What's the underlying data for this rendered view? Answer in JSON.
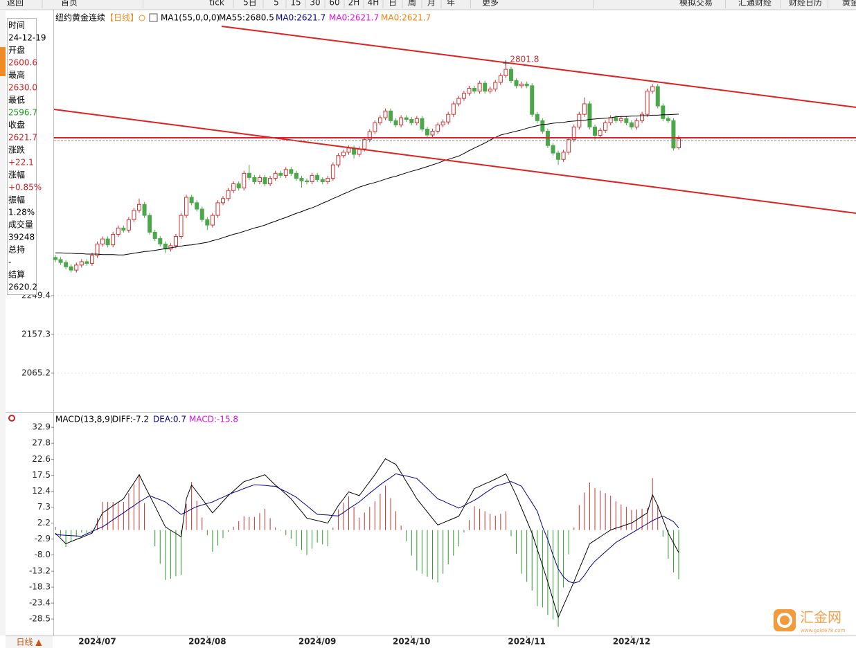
{
  "toolbar": [
    "返回",
    "首页",
    "tick",
    "5日",
    "5",
    "15",
    "30",
    "60",
    "2H",
    "4H",
    "日",
    "周",
    "月",
    "年",
    "更多",
    "模拟交易",
    "汇通财经",
    "财经日历",
    "黄金"
  ],
  "info_panel": {
    "rows": [
      {
        "label": "时间",
        "value": "24-12-19",
        "color": "#000000"
      },
      {
        "label": "开盘",
        "value": "2600.6",
        "color": "#d02020"
      },
      {
        "label": "最高",
        "value": "2630.0",
        "color": "#d02020"
      },
      {
        "label": "最低",
        "value": "2596.7",
        "color": "#1a9a1a"
      },
      {
        "label": "收盘",
        "value": "2621.7",
        "color": "#d02020"
      },
      {
        "label": "涨跌",
        "value": "+22.1",
        "color": "#d02020"
      },
      {
        "label": "涨幅",
        "value": "+0.85%",
        "color": "#d02020"
      },
      {
        "label": "振幅",
        "value": "1.28%",
        "color": "#000000"
      },
      {
        "label": "成交量",
        "value": "39248",
        "color": "#000000"
      },
      {
        "label": "总持",
        "value": "-",
        "color": "#000000"
      },
      {
        "label": "结算",
        "value": "2620.2",
        "color": "#000000"
      }
    ]
  },
  "chart_data": [
    {
      "type": "candlestick",
      "title": "纽约黄金连续",
      "period": "【日线】",
      "indicator_labels": [
        {
          "text": "MA1(55,0,0,0)",
          "color": "#000000"
        },
        {
          "text": "MA0:2621.7",
          "color": "#00008b"
        },
        {
          "text": "MA0:2621.7",
          "color": "#e010e0"
        },
        {
          "text": "MA0:2621.7",
          "color": "#f08010"
        }
      ],
      "up_color": "#d03030",
      "down_color": "#4aa84a",
      "categories": [
        null,
        null,
        null,
        null,
        null,
        null,
        null,
        null,
        "2024/07",
        null,
        null,
        null,
        null,
        null,
        null,
        null,
        null,
        null,
        null,
        null,
        null,
        null,
        null,
        null,
        null,
        null,
        null,
        null,
        null,
        "2024/08",
        null,
        null,
        null,
        null,
        null,
        null,
        null,
        null,
        null,
        null,
        null,
        null,
        null,
        null,
        null,
        null,
        null,
        null,
        null,
        null,
        "2024/09",
        null,
        null,
        null,
        null,
        null,
        null,
        null,
        null,
        null,
        null,
        null,
        null,
        null,
        null,
        null,
        null,
        null,
        "2024/10",
        null,
        null,
        null,
        null,
        null,
        null,
        null,
        null,
        null,
        null,
        null,
        null,
        null,
        null,
        null,
        null,
        null,
        null,
        null,
        null,
        null,
        "2024/11",
        null,
        null,
        null,
        null,
        null,
        null,
        null,
        null,
        null,
        null,
        null,
        null,
        null,
        null,
        null,
        null,
        null,
        null,
        null,
        "2024/12",
        null,
        null,
        null,
        null,
        null,
        null,
        null,
        null,
        null
      ],
      "open": [
        2340,
        2335,
        2328,
        2318,
        2310,
        2322,
        2330,
        2326,
        2345,
        2372,
        2384,
        2370,
        2395,
        2410,
        2405,
        2430,
        2452,
        2466,
        2440,
        2400,
        2385,
        2372,
        2360,
        2368,
        2390,
        2440,
        2483,
        2470,
        2455,
        2430,
        2417,
        2440,
        2470,
        2480,
        2499,
        2515,
        2505,
        2540,
        2530,
        2520,
        2530,
        2515,
        2528,
        2540,
        2535,
        2549,
        2540,
        2528,
        2522,
        2520,
        2535,
        2525,
        2520,
        2528,
        2560,
        2582,
        2590,
        2600,
        2585,
        2598,
        2620,
        2639,
        2660,
        2672,
        2688,
        2665,
        2655,
        2672,
        2668,
        2660,
        2670,
        2645,
        2631,
        2640,
        2655,
        2662,
        2680,
        2705,
        2718,
        2730,
        2742,
        2735,
        2754,
        2735,
        2740,
        2756,
        2772,
        2787,
        2760,
        2748,
        2752,
        2748,
        2680,
        2665,
        2640,
        2606,
        2588,
        2573,
        2590,
        2620,
        2650,
        2680,
        2705,
        2650,
        2630,
        2642,
        2660,
        2672,
        2665,
        2670,
        2660,
        2650,
        2665,
        2680,
        2735,
        2746,
        2700,
        2670,
        2665,
        2600.6
      ],
      "high": [
        2346,
        2341,
        2334,
        2324,
        2328,
        2336,
        2336,
        2351,
        2378,
        2390,
        2390,
        2401,
        2416,
        2416,
        2436,
        2458,
        2480,
        2472,
        2446,
        2406,
        2391,
        2378,
        2374,
        2396,
        2446,
        2489,
        2489,
        2476,
        2461,
        2436,
        2446,
        2476,
        2486,
        2505,
        2521,
        2521,
        2546,
        2560,
        2536,
        2536,
        2536,
        2534,
        2546,
        2546,
        2555,
        2555,
        2546,
        2534,
        2528,
        2541,
        2541,
        2531,
        2534,
        2566,
        2588,
        2596,
        2606,
        2606,
        2604,
        2626,
        2645,
        2666,
        2678,
        2694,
        2694,
        2671,
        2678,
        2678,
        2674,
        2676,
        2676,
        2651,
        2646,
        2661,
        2668,
        2686,
        2711,
        2724,
        2736,
        2748,
        2748,
        2760,
        2760,
        2746,
        2762,
        2778,
        2801.8,
        2793,
        2766,
        2758,
        2758,
        2754,
        2686,
        2671,
        2646,
        2612,
        2594,
        2596,
        2626,
        2656,
        2686,
        2720,
        2711,
        2656,
        2648,
        2666,
        2678,
        2678,
        2676,
        2676,
        2666,
        2671,
        2686,
        2741,
        2752,
        2752,
        2706,
        2676,
        2671,
        2630.0
      ],
      "low": [
        2329,
        2322,
        2312,
        2304,
        2304,
        2316,
        2320,
        2320,
        2339,
        2366,
        2364,
        2364,
        2389,
        2399,
        2399,
        2424,
        2446,
        2434,
        2394,
        2379,
        2366,
        2350,
        2354,
        2362,
        2384,
        2434,
        2464,
        2449,
        2424,
        2405,
        2411,
        2434,
        2464,
        2474,
        2493,
        2499,
        2499,
        2524,
        2514,
        2514,
        2509,
        2509,
        2522,
        2529,
        2529,
        2534,
        2522,
        2506,
        2514,
        2514,
        2519,
        2514,
        2514,
        2522,
        2554,
        2576,
        2584,
        2575,
        2579,
        2592,
        2614,
        2633,
        2654,
        2666,
        2659,
        2649,
        2649,
        2662,
        2654,
        2654,
        2639,
        2625,
        2625,
        2634,
        2649,
        2656,
        2674,
        2699,
        2712,
        2724,
        2729,
        2729,
        2729,
        2729,
        2734,
        2750,
        2766,
        2754,
        2742,
        2742,
        2742,
        2674,
        2659,
        2634,
        2600,
        2582,
        2560,
        2567,
        2584,
        2614,
        2644,
        2674,
        2644,
        2620,
        2624,
        2636,
        2654,
        2659,
        2659,
        2654,
        2644,
        2644,
        2659,
        2674,
        2729,
        2694,
        2664,
        2659,
        2594,
        2596.7
      ],
      "close": [
        2335,
        2328,
        2318,
        2310,
        2322,
        2330,
        2326,
        2345,
        2372,
        2384,
        2370,
        2395,
        2410,
        2405,
        2430,
        2452,
        2466,
        2440,
        2400,
        2385,
        2372,
        2360,
        2368,
        2390,
        2440,
        2483,
        2470,
        2455,
        2430,
        2417,
        2440,
        2470,
        2480,
        2499,
        2515,
        2505,
        2540,
        2530,
        2520,
        2530,
        2515,
        2528,
        2540,
        2535,
        2549,
        2540,
        2528,
        2522,
        2520,
        2535,
        2525,
        2520,
        2528,
        2560,
        2582,
        2590,
        2600,
        2585,
        2598,
        2620,
        2639,
        2660,
        2672,
        2688,
        2665,
        2655,
        2672,
        2668,
        2660,
        2670,
        2645,
        2631,
        2640,
        2655,
        2662,
        2680,
        2705,
        2718,
        2730,
        2742,
        2735,
        2754,
        2735,
        2740,
        2756,
        2772,
        2787,
        2760,
        2748,
        2752,
        2748,
        2680,
        2665,
        2640,
        2606,
        2588,
        2573,
        2590,
        2620,
        2650,
        2680,
        2705,
        2650,
        2630,
        2642,
        2660,
        2672,
        2665,
        2670,
        2660,
        2650,
        2665,
        2680,
        2735,
        2746,
        2700,
        2670,
        2665,
        2600,
        2621.7
      ],
      "ma": {
        "name": "MA55:2680.5",
        "color": "#000000",
        "values": [
          2351,
          2351,
          2350,
          2350,
          2349,
          2349,
          2348,
          2348,
          2348,
          2347,
          2347,
          2347,
          2346,
          2346,
          2348,
          2350,
          2352,
          2354,
          2355,
          2357,
          2359,
          2361,
          2363,
          2365,
          2367,
          2369,
          2370,
          2372,
          2374,
          2376,
          2380,
          2383,
          2387,
          2391,
          2395,
          2398,
          2402,
          2406,
          2410,
          2413,
          2417,
          2422,
          2426,
          2431,
          2435,
          2440,
          2445,
          2449,
          2454,
          2458,
          2463,
          2469,
          2474,
          2480,
          2485,
          2491,
          2496,
          2502,
          2507,
          2511,
          2515,
          2518,
          2522,
          2526,
          2530,
          2533,
          2537,
          2541,
          2545,
          2548,
          2552,
          2556,
          2560,
          2564,
          2569,
          2573,
          2577,
          2581,
          2587,
          2594,
          2600,
          2606,
          2612,
          2619,
          2625,
          2631,
          2634,
          2637,
          2640,
          2643,
          2647,
          2650,
          2653,
          2656,
          2657,
          2659,
          2660,
          2661,
          2663,
          2664,
          2665,
          2666,
          2668,
          2669,
          2670,
          2671,
          2672,
          2674,
          2675,
          2675,
          2676,
          2676,
          2677,
          2677,
          2678,
          2678,
          2679,
          2679,
          2680,
          2680.5
        ]
      },
      "ylim": [
        1978.0,
        2918.8
      ],
      "yticks": [
        2065.2,
        2157.3,
        2249.4
      ],
      "grid": true
    },
    {
      "type": "macd",
      "title": "MACD(13,8,9)",
      "series": [
        {
          "name": "DIFF:-7.2",
          "color": "#000000",
          "kind": "line",
          "values": [
            -1,
            -2.7,
            -4.4,
            -3.7,
            -3,
            -2.4,
            -1.7,
            -1,
            2.2,
            5.5,
            6.6,
            7.8,
            8.9,
            10,
            12.6,
            15.1,
            17.7,
            14.3,
            11,
            7.7,
            4.3,
            1,
            -0.1,
            -1.1,
            -2.2,
            10,
            14.4,
            12.2,
            10,
            7.7,
            5.5,
            7.3,
            9.2,
            11,
            12.5,
            14,
            15.5,
            16,
            16.6,
            17.1,
            17.7,
            16,
            14.4,
            13,
            11.5,
            10,
            7.9,
            5.9,
            3.8,
            3.4,
            3,
            2.6,
            2.2,
            5,
            7.8,
            10,
            12.2,
            11.6,
            11,
            13.2,
            15.5,
            17.7,
            20.3,
            22.8,
            21.9,
            21,
            18.3,
            15.5,
            12.8,
            10,
            7.9,
            5.8,
            3.7,
            1.6,
            2.3,
            3,
            3.7,
            4.4,
            7.4,
            10.3,
            13.3,
            14,
            14.8,
            15.5,
            16.3,
            17.1,
            18,
            14.5,
            11,
            7,
            3,
            -1,
            -6.2,
            -11.4,
            -16.6,
            -22.3,
            -28,
            -24.2,
            -20.4,
            -16.6,
            -12.5,
            -8.5,
            -4.4,
            -3.3,
            -2.2,
            -1.1,
            0,
            0.6,
            1.1,
            1.7,
            2.2,
            3.3,
            4.4,
            5.5,
            11.3,
            7.8,
            3.4,
            -1,
            -4.1,
            -7.2
          ]
        },
        {
          "name": "DEA:0.7",
          "color": "#00008b",
          "kind": "line",
          "values": [
            -1.5,
            -1.6,
            -1.7,
            -1.8,
            -1.9,
            -2,
            -1.2,
            -0.5,
            0.3,
            1,
            2.1,
            3.3,
            4.4,
            5.5,
            6.7,
            7.8,
            9,
            10,
            11,
            10.3,
            9.7,
            9,
            7.7,
            6.3,
            5,
            5.8,
            6.7,
            7.5,
            8,
            8.5,
            9,
            9.8,
            10.5,
            11.3,
            12,
            12.6,
            13.3,
            13.9,
            14.5,
            14.4,
            14.3,
            14.1,
            14,
            13.1,
            12.3,
            11.4,
            10.5,
            9.1,
            7.8,
            6.4,
            5,
            4.9,
            4.8,
            4.6,
            4.5,
            5.6,
            6.8,
            7.9,
            9,
            10.4,
            11.8,
            13.1,
            14.5,
            15.7,
            16.8,
            18,
            17.6,
            17.3,
            16.9,
            16.5,
            14.9,
            13.3,
            11.6,
            10,
            9.3,
            8.5,
            7.8,
            7,
            7.8,
            8.7,
            9.5,
            10.6,
            11.8,
            12.9,
            14,
            14.5,
            15,
            15.5,
            14.8,
            14,
            11.3,
            8.7,
            6,
            1,
            -3,
            -8,
            -12.5,
            -15,
            -16.5,
            -17,
            -16.5,
            -14.5,
            -12,
            -10,
            -8.5,
            -7,
            -5.5,
            -4,
            -3,
            -2,
            -1,
            0,
            1,
            2,
            3,
            3.8,
            4.5,
            3.6,
            2.7,
            0.7
          ]
        },
        {
          "name": "MACD:-15.8",
          "color": "#e010e0",
          "kind": "bar",
          "up_color": "#c83030",
          "down_color": "#2a9a2a",
          "values": [
            1.0,
            -2.2,
            -5.4,
            -3.8,
            -2.2,
            -0.8,
            -1.0,
            -1.0,
            3.8,
            9.0,
            9.0,
            9.0,
            9.0,
            9.0,
            11.8,
            14.6,
            17.4,
            8.6,
            0,
            -5.2,
            -10.8,
            -16,
            -15.6,
            -14.8,
            -14.4,
            8.4,
            15.4,
            9.4,
            4.0,
            -1.6,
            -7.0,
            -5.0,
            -2.6,
            -0.6,
            1.0,
            2.8,
            4.4,
            4.2,
            4.2,
            5.4,
            6.8,
            3.8,
            0.8,
            -0.2,
            -1.6,
            -2.8,
            -5.2,
            -6.4,
            -8.0,
            -6.0,
            -4.0,
            -4.6,
            -5.2,
            0.8,
            6.6,
            8.8,
            10.8,
            7.4,
            4.0,
            5.6,
            7.4,
            9.2,
            11.6,
            14.2,
            10.2,
            6.0,
            1.4,
            -3.6,
            -8.2,
            -13.0,
            -14.0,
            -15.0,
            -15.8,
            -16.8,
            -14.0,
            -11.0,
            -8.2,
            -5.2,
            -0.8,
            3.2,
            7.6,
            6.8,
            6.0,
            5.2,
            4.6,
            5.2,
            6.0,
            -2.0,
            -7.6,
            -14.0,
            -16.6,
            -19.4,
            -24.4,
            -24.8,
            -27.2,
            -28.6,
            -31.0,
            -18.4,
            -7.8,
            0.8,
            8.0,
            12.0,
            15.2,
            13.4,
            12.6,
            11.8,
            11.0,
            9.2,
            8.2,
            7.4,
            6.4,
            6.6,
            6.8,
            7.0,
            16.6,
            8.0,
            -2.2,
            -9.2,
            -13.6,
            -15.8
          ]
        }
      ],
      "ylim": [
        -33.8,
        35.6
      ],
      "yticks": [
        32.9,
        27.8,
        22.6,
        17.5,
        12.4,
        7.3,
        2.2,
        -2.9,
        {
          "value": -8,
          "label": "-8.0"
        },
        -13.2,
        -18.3,
        -23.4,
        -28.5
      ]
    }
  ],
  "footer": {
    "period_button": "日线 ▲"
  },
  "watermark": {
    "name": "汇金网",
    "url": "www.gold678.com"
  }
}
